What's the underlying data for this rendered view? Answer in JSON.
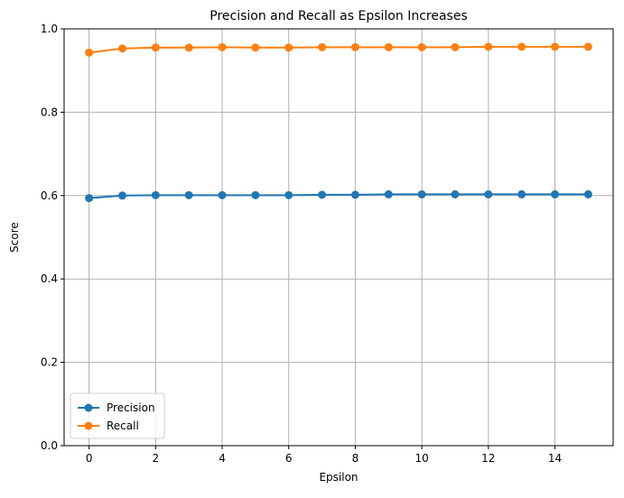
{
  "chart_data": {
    "type": "line",
    "title": "Precision and Recall as Epsilon Increases",
    "xlabel": "Epsilon",
    "ylabel": "Score",
    "xlim": [
      -0.75,
      15.75
    ],
    "ylim": [
      0.0,
      1.0
    ],
    "x_ticks": [
      0,
      2,
      4,
      6,
      8,
      10,
      12,
      14
    ],
    "y_ticks": [
      0.0,
      0.2,
      0.4,
      0.6,
      0.8,
      1.0
    ],
    "x_tick_labels": [
      "0",
      "2",
      "4",
      "6",
      "8",
      "10",
      "12",
      "14"
    ],
    "y_tick_labels": [
      "0.0",
      "0.2",
      "0.4",
      "0.6",
      "0.8",
      "1.0"
    ],
    "grid": true,
    "legend_position": "lower-left",
    "x": [
      0,
      1,
      2,
      3,
      4,
      5,
      6,
      7,
      8,
      9,
      10,
      11,
      12,
      13,
      14,
      15
    ],
    "series": [
      {
        "name": "Precision",
        "color": "#1f77b4",
        "marker": "circle",
        "values": [
          0.594,
          0.6,
          0.601,
          0.601,
          0.601,
          0.601,
          0.601,
          0.602,
          0.602,
          0.603,
          0.603,
          0.603,
          0.603,
          0.603,
          0.603,
          0.603
        ]
      },
      {
        "name": "Recall",
        "color": "#ff7f0e",
        "marker": "circle",
        "values": [
          0.943,
          0.953,
          0.955,
          0.955,
          0.956,
          0.955,
          0.955,
          0.956,
          0.956,
          0.956,
          0.956,
          0.956,
          0.957,
          0.957,
          0.957,
          0.957
        ]
      }
    ]
  }
}
